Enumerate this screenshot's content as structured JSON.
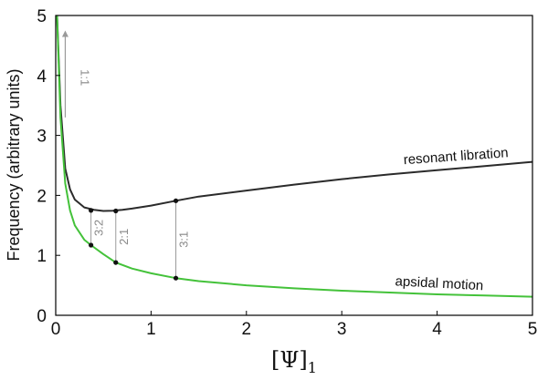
{
  "chart_data": {
    "type": "line",
    "title": "",
    "xlabel": "[Ψ]₁",
    "xlabel_main": "[Ψ]",
    "xlabel_sub": "1",
    "ylabel": "Frequency (arbitrary units)",
    "xlim": [
      0,
      5
    ],
    "ylim": [
      0,
      5
    ],
    "xticks": [
      "0",
      "1",
      "2",
      "3",
      "4",
      "5"
    ],
    "yticks": [
      "0",
      "1",
      "2",
      "3",
      "4",
      "5"
    ],
    "grid": false,
    "series": [
      {
        "name": "resonant libration",
        "color": "#2b2b2b",
        "x": [
          0.01,
          0.05,
          0.1,
          0.15,
          0.2,
          0.3,
          0.4,
          0.5,
          0.6,
          0.7,
          0.8,
          1.0,
          1.26,
          1.5,
          2.0,
          2.5,
          3.0,
          3.5,
          4.0,
          4.5,
          5.0
        ],
        "y": [
          5.2,
          3.5,
          2.45,
          2.1,
          1.93,
          1.8,
          1.76,
          1.74,
          1.745,
          1.76,
          1.78,
          1.83,
          1.91,
          1.98,
          2.08,
          2.18,
          2.27,
          2.35,
          2.42,
          2.49,
          2.56
        ]
      },
      {
        "name": "apsidal motion",
        "color": "#44c23a",
        "x": [
          0.01,
          0.05,
          0.1,
          0.15,
          0.2,
          0.3,
          0.37,
          0.5,
          0.63,
          0.8,
          1.0,
          1.26,
          1.5,
          2.0,
          2.5,
          3.0,
          3.5,
          4.0,
          4.5,
          5.0
        ],
        "y": [
          5.2,
          3.3,
          2.2,
          1.75,
          1.5,
          1.26,
          1.17,
          1.02,
          0.88,
          0.78,
          0.7,
          0.62,
          0.57,
          0.5,
          0.45,
          0.41,
          0.38,
          0.35,
          0.33,
          0.31
        ]
      }
    ],
    "resonances": [
      {
        "label": "3:2",
        "x": 0.37,
        "y_low": 1.17,
        "y_high": 1.75
      },
      {
        "label": "2:1",
        "x": 0.63,
        "y_low": 0.88,
        "y_high": 1.74
      },
      {
        "label": "3:1",
        "x": 1.26,
        "y_low": 0.62,
        "y_high": 1.91
      }
    ],
    "arrow_annotation": {
      "label": "1:1",
      "x": 0.1,
      "y_from": 3.3,
      "y_to": 4.75
    },
    "line_labels": [
      {
        "text": "resonant libration",
        "x": 4.2,
        "y": 2.58
      },
      {
        "text": "apsidal motion",
        "x": 4.02,
        "y": 0.46
      }
    ]
  },
  "colors": {
    "libration": "#2b2b2b",
    "apsidal": "#44c23a",
    "annotation": "#9a9a9a",
    "axis": "#000000"
  }
}
